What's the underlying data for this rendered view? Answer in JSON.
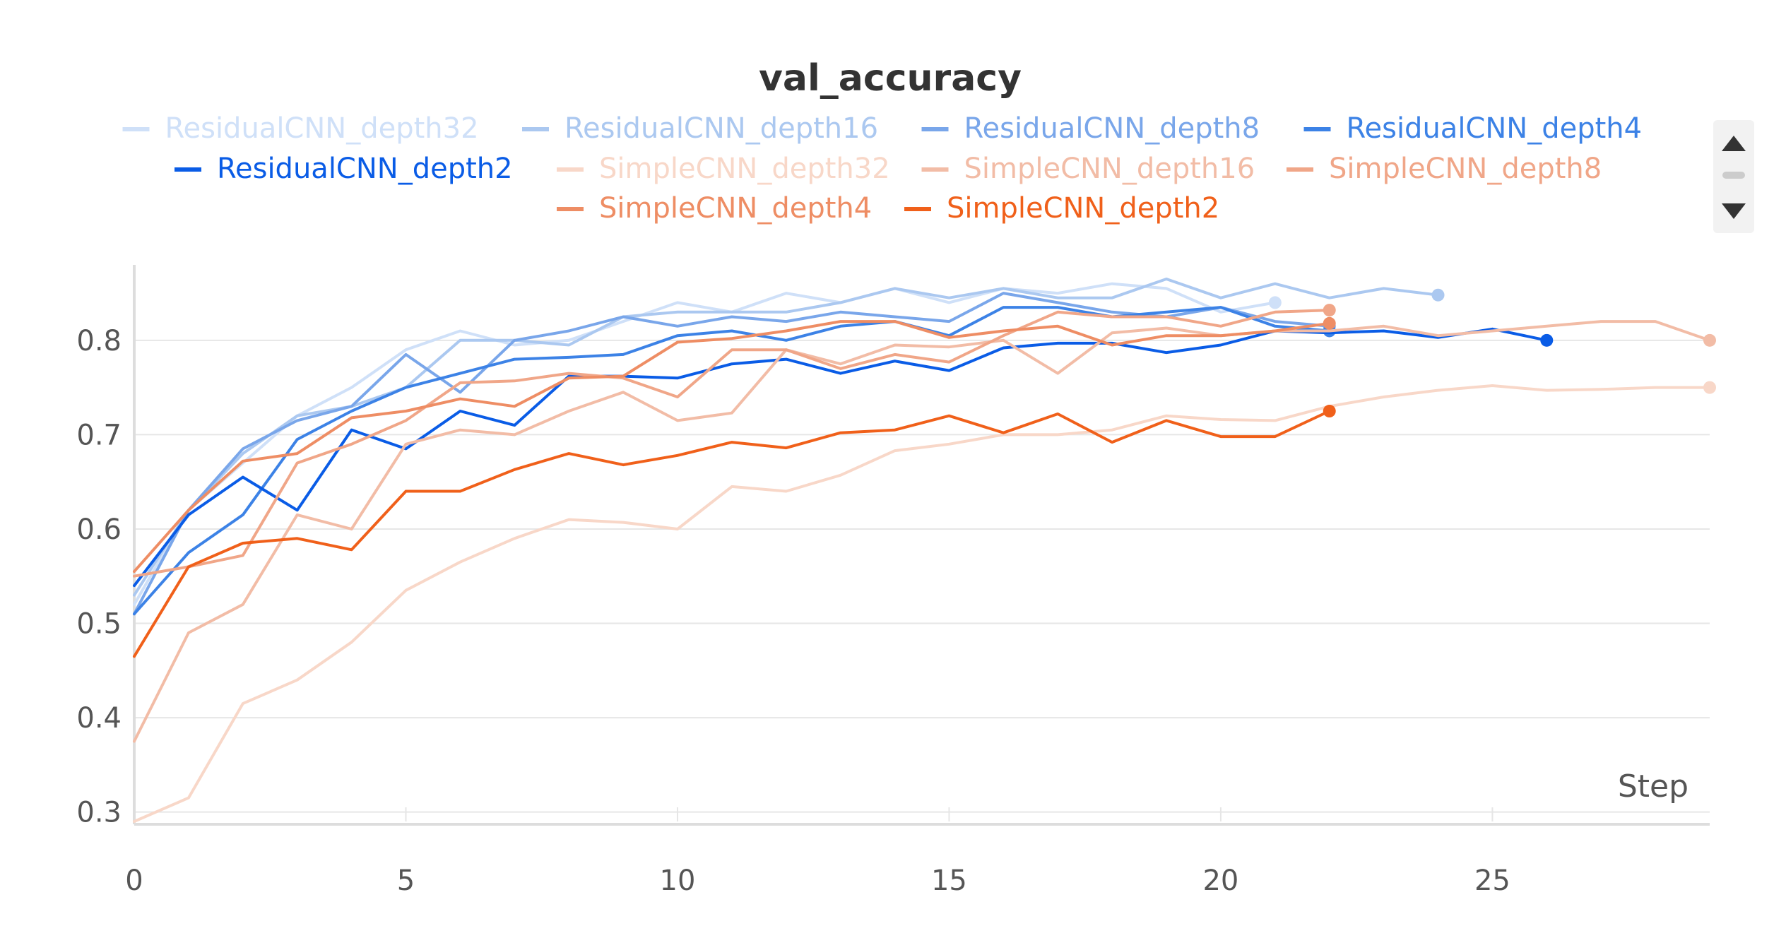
{
  "chart_data": {
    "type": "line",
    "title": "val_accuracy",
    "xlabel": "Step",
    "ylabel": "",
    "xlim": [
      0,
      29
    ],
    "ylim": [
      0.29,
      0.88
    ],
    "xticks": [
      0,
      5,
      10,
      15,
      20,
      25
    ],
    "yticks": [
      0.3,
      0.4,
      0.5,
      0.6,
      0.7,
      0.8
    ],
    "grid": true,
    "legend_position": "top",
    "series": [
      {
        "name": "ResidualCNN_depth32",
        "color": "#cfe0f8",
        "x": [
          0,
          1,
          2,
          3,
          4,
          5,
          6,
          7,
          8,
          9,
          10,
          11,
          12,
          13,
          14,
          15,
          16,
          17,
          18,
          19,
          20,
          21
        ],
        "y": [
          0.52,
          0.62,
          0.67,
          0.72,
          0.75,
          0.79,
          0.81,
          0.795,
          0.8,
          0.82,
          0.84,
          0.83,
          0.85,
          0.84,
          0.855,
          0.84,
          0.855,
          0.85,
          0.86,
          0.855,
          0.83,
          0.84
        ]
      },
      {
        "name": "ResidualCNN_depth16",
        "color": "#abc8f0",
        "x": [
          0,
          1,
          2,
          3,
          4,
          5,
          6,
          7,
          8,
          9,
          10,
          11,
          12,
          13,
          14,
          15,
          16,
          17,
          18,
          19,
          20,
          21,
          22,
          23,
          24
        ],
        "y": [
          0.53,
          0.62,
          0.68,
          0.72,
          0.73,
          0.75,
          0.8,
          0.8,
          0.795,
          0.825,
          0.83,
          0.83,
          0.83,
          0.84,
          0.855,
          0.845,
          0.855,
          0.845,
          0.845,
          0.865,
          0.845,
          0.86,
          0.845,
          0.855,
          0.848
        ]
      },
      {
        "name": "ResidualCNN_depth8",
        "color": "#79a6ea",
        "x": [
          0,
          1,
          2,
          3,
          4,
          5,
          6,
          7,
          8,
          9,
          10,
          11,
          12,
          13,
          14,
          15,
          16,
          17,
          18,
          19,
          20,
          21,
          22
        ],
        "y": [
          0.51,
          0.62,
          0.685,
          0.715,
          0.73,
          0.785,
          0.745,
          0.8,
          0.81,
          0.825,
          0.815,
          0.825,
          0.82,
          0.83,
          0.825,
          0.82,
          0.85,
          0.84,
          0.83,
          0.825,
          0.835,
          0.82,
          0.815
        ]
      },
      {
        "name": "ResidualCNN_depth4",
        "color": "#3c82e6",
        "x": [
          0,
          1,
          2,
          3,
          4,
          5,
          6,
          7,
          8,
          9,
          10,
          11,
          12,
          13,
          14,
          15,
          16,
          17,
          18,
          19,
          20,
          21,
          22
        ],
        "y": [
          0.51,
          0.575,
          0.615,
          0.695,
          0.725,
          0.75,
          0.765,
          0.78,
          0.782,
          0.785,
          0.805,
          0.81,
          0.8,
          0.815,
          0.82,
          0.805,
          0.835,
          0.835,
          0.825,
          0.83,
          0.835,
          0.815,
          0.81
        ]
      },
      {
        "name": "ResidualCNN_depth2",
        "color": "#0a5ce6",
        "x": [
          0,
          1,
          2,
          3,
          4,
          5,
          6,
          7,
          8,
          9,
          10,
          11,
          12,
          13,
          14,
          15,
          16,
          17,
          18,
          19,
          20,
          21,
          22,
          23,
          24,
          25,
          26
        ],
        "y": [
          0.54,
          0.615,
          0.655,
          0.62,
          0.705,
          0.685,
          0.725,
          0.71,
          0.762,
          0.762,
          0.76,
          0.775,
          0.78,
          0.765,
          0.778,
          0.768,
          0.792,
          0.797,
          0.797,
          0.787,
          0.795,
          0.81,
          0.808,
          0.81,
          0.803,
          0.812,
          0.8
        ]
      },
      {
        "name": "SimpleCNN_depth32",
        "color": "#f8d7c8",
        "x": [
          0,
          1,
          2,
          3,
          4,
          5,
          6,
          7,
          8,
          9,
          10,
          11,
          12,
          13,
          14,
          15,
          16,
          17,
          18,
          19,
          20,
          21,
          22,
          23,
          24,
          25,
          26,
          27,
          28,
          29
        ],
        "y": [
          0.29,
          0.315,
          0.415,
          0.44,
          0.48,
          0.535,
          0.565,
          0.59,
          0.61,
          0.607,
          0.6,
          0.645,
          0.64,
          0.657,
          0.683,
          0.69,
          0.7,
          0.7,
          0.705,
          0.72,
          0.716,
          0.715,
          0.73,
          0.74,
          0.747,
          0.752,
          0.747,
          0.748,
          0.75,
          0.75
        ]
      },
      {
        "name": "SimpleCNN_depth16",
        "color": "#f2bca6",
        "x": [
          0,
          1,
          2,
          3,
          4,
          5,
          6,
          7,
          8,
          9,
          10,
          11,
          12,
          13,
          14,
          15,
          16,
          17,
          18,
          19,
          20,
          21,
          22,
          23,
          24,
          25,
          26,
          27,
          28,
          29
        ],
        "y": [
          0.375,
          0.49,
          0.52,
          0.615,
          0.6,
          0.69,
          0.705,
          0.7,
          0.725,
          0.745,
          0.715,
          0.723,
          0.79,
          0.775,
          0.795,
          0.793,
          0.8,
          0.765,
          0.808,
          0.813,
          0.805,
          0.81,
          0.81,
          0.815,
          0.805,
          0.81,
          0.815,
          0.82,
          0.82,
          0.8
        ]
      },
      {
        "name": "SimpleCNN_depth8",
        "color": "#f0a688",
        "x": [
          0,
          1,
          2,
          3,
          4,
          5,
          6,
          7,
          8,
          9,
          10,
          11,
          12,
          13,
          14,
          15,
          16,
          17,
          18,
          19,
          20,
          21,
          22
        ],
        "y": [
          0.55,
          0.56,
          0.572,
          0.67,
          0.69,
          0.715,
          0.755,
          0.757,
          0.765,
          0.76,
          0.74,
          0.79,
          0.79,
          0.77,
          0.785,
          0.777,
          0.805,
          0.83,
          0.825,
          0.825,
          0.815,
          0.83,
          0.832
        ]
      },
      {
        "name": "SimpleCNN_depth4",
        "color": "#ee8d64",
        "x": [
          0,
          1,
          2,
          3,
          4,
          5,
          6,
          7,
          8,
          9,
          10,
          11,
          12,
          13,
          14,
          15,
          16,
          17,
          18,
          19,
          20,
          21,
          22
        ],
        "y": [
          0.555,
          0.62,
          0.672,
          0.68,
          0.718,
          0.725,
          0.738,
          0.73,
          0.76,
          0.762,
          0.798,
          0.802,
          0.81,
          0.82,
          0.82,
          0.803,
          0.81,
          0.815,
          0.795,
          0.805,
          0.805,
          0.81,
          0.818
        ]
      },
      {
        "name": "SimpleCNN_depth2",
        "color": "#f0601a",
        "x": [
          0,
          1,
          2,
          3,
          4,
          5,
          6,
          7,
          8,
          9,
          10,
          11,
          12,
          13,
          14,
          15,
          16,
          17,
          18,
          19,
          20,
          21,
          22
        ],
        "y": [
          0.465,
          0.56,
          0.585,
          0.59,
          0.578,
          0.64,
          0.64,
          0.663,
          0.68,
          0.668,
          0.678,
          0.692,
          0.686,
          0.702,
          0.705,
          0.72,
          0.702,
          0.722,
          0.692,
          0.715,
          0.698,
          0.698,
          0.725
        ]
      }
    ]
  }
}
